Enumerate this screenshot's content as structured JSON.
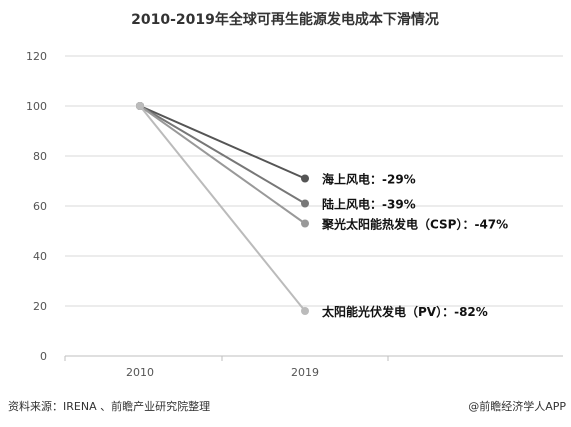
{
  "chart_data": {
    "type": "line",
    "title": "2010-2019年全球可再生能源发电成本下滑情况",
    "categories": [
      "2010",
      "2019"
    ],
    "ylim": [
      0,
      120
    ],
    "yticks": [
      "0",
      "20",
      "40",
      "60",
      "80",
      "100",
      "120"
    ],
    "grid": true,
    "series": [
      {
        "name": "海上风电：-29%",
        "values": [
          100,
          71
        ],
        "color": "#555555"
      },
      {
        "name": "陆上风电：-39%",
        "values": [
          100,
          61
        ],
        "color": "#777777"
      },
      {
        "name": "聚光太阳能热发电（CSP）：-47%",
        "values": [
          100,
          53
        ],
        "color": "#999999"
      },
      {
        "name": "太阳能光伏发电（PV）：-82%",
        "values": [
          100,
          18
        ],
        "color": "#bbbbbb"
      }
    ]
  },
  "footer": {
    "source": "资料来源：IRENA 、前瞻产业研究院整理",
    "brand": "@前瞻经济学人APP"
  }
}
